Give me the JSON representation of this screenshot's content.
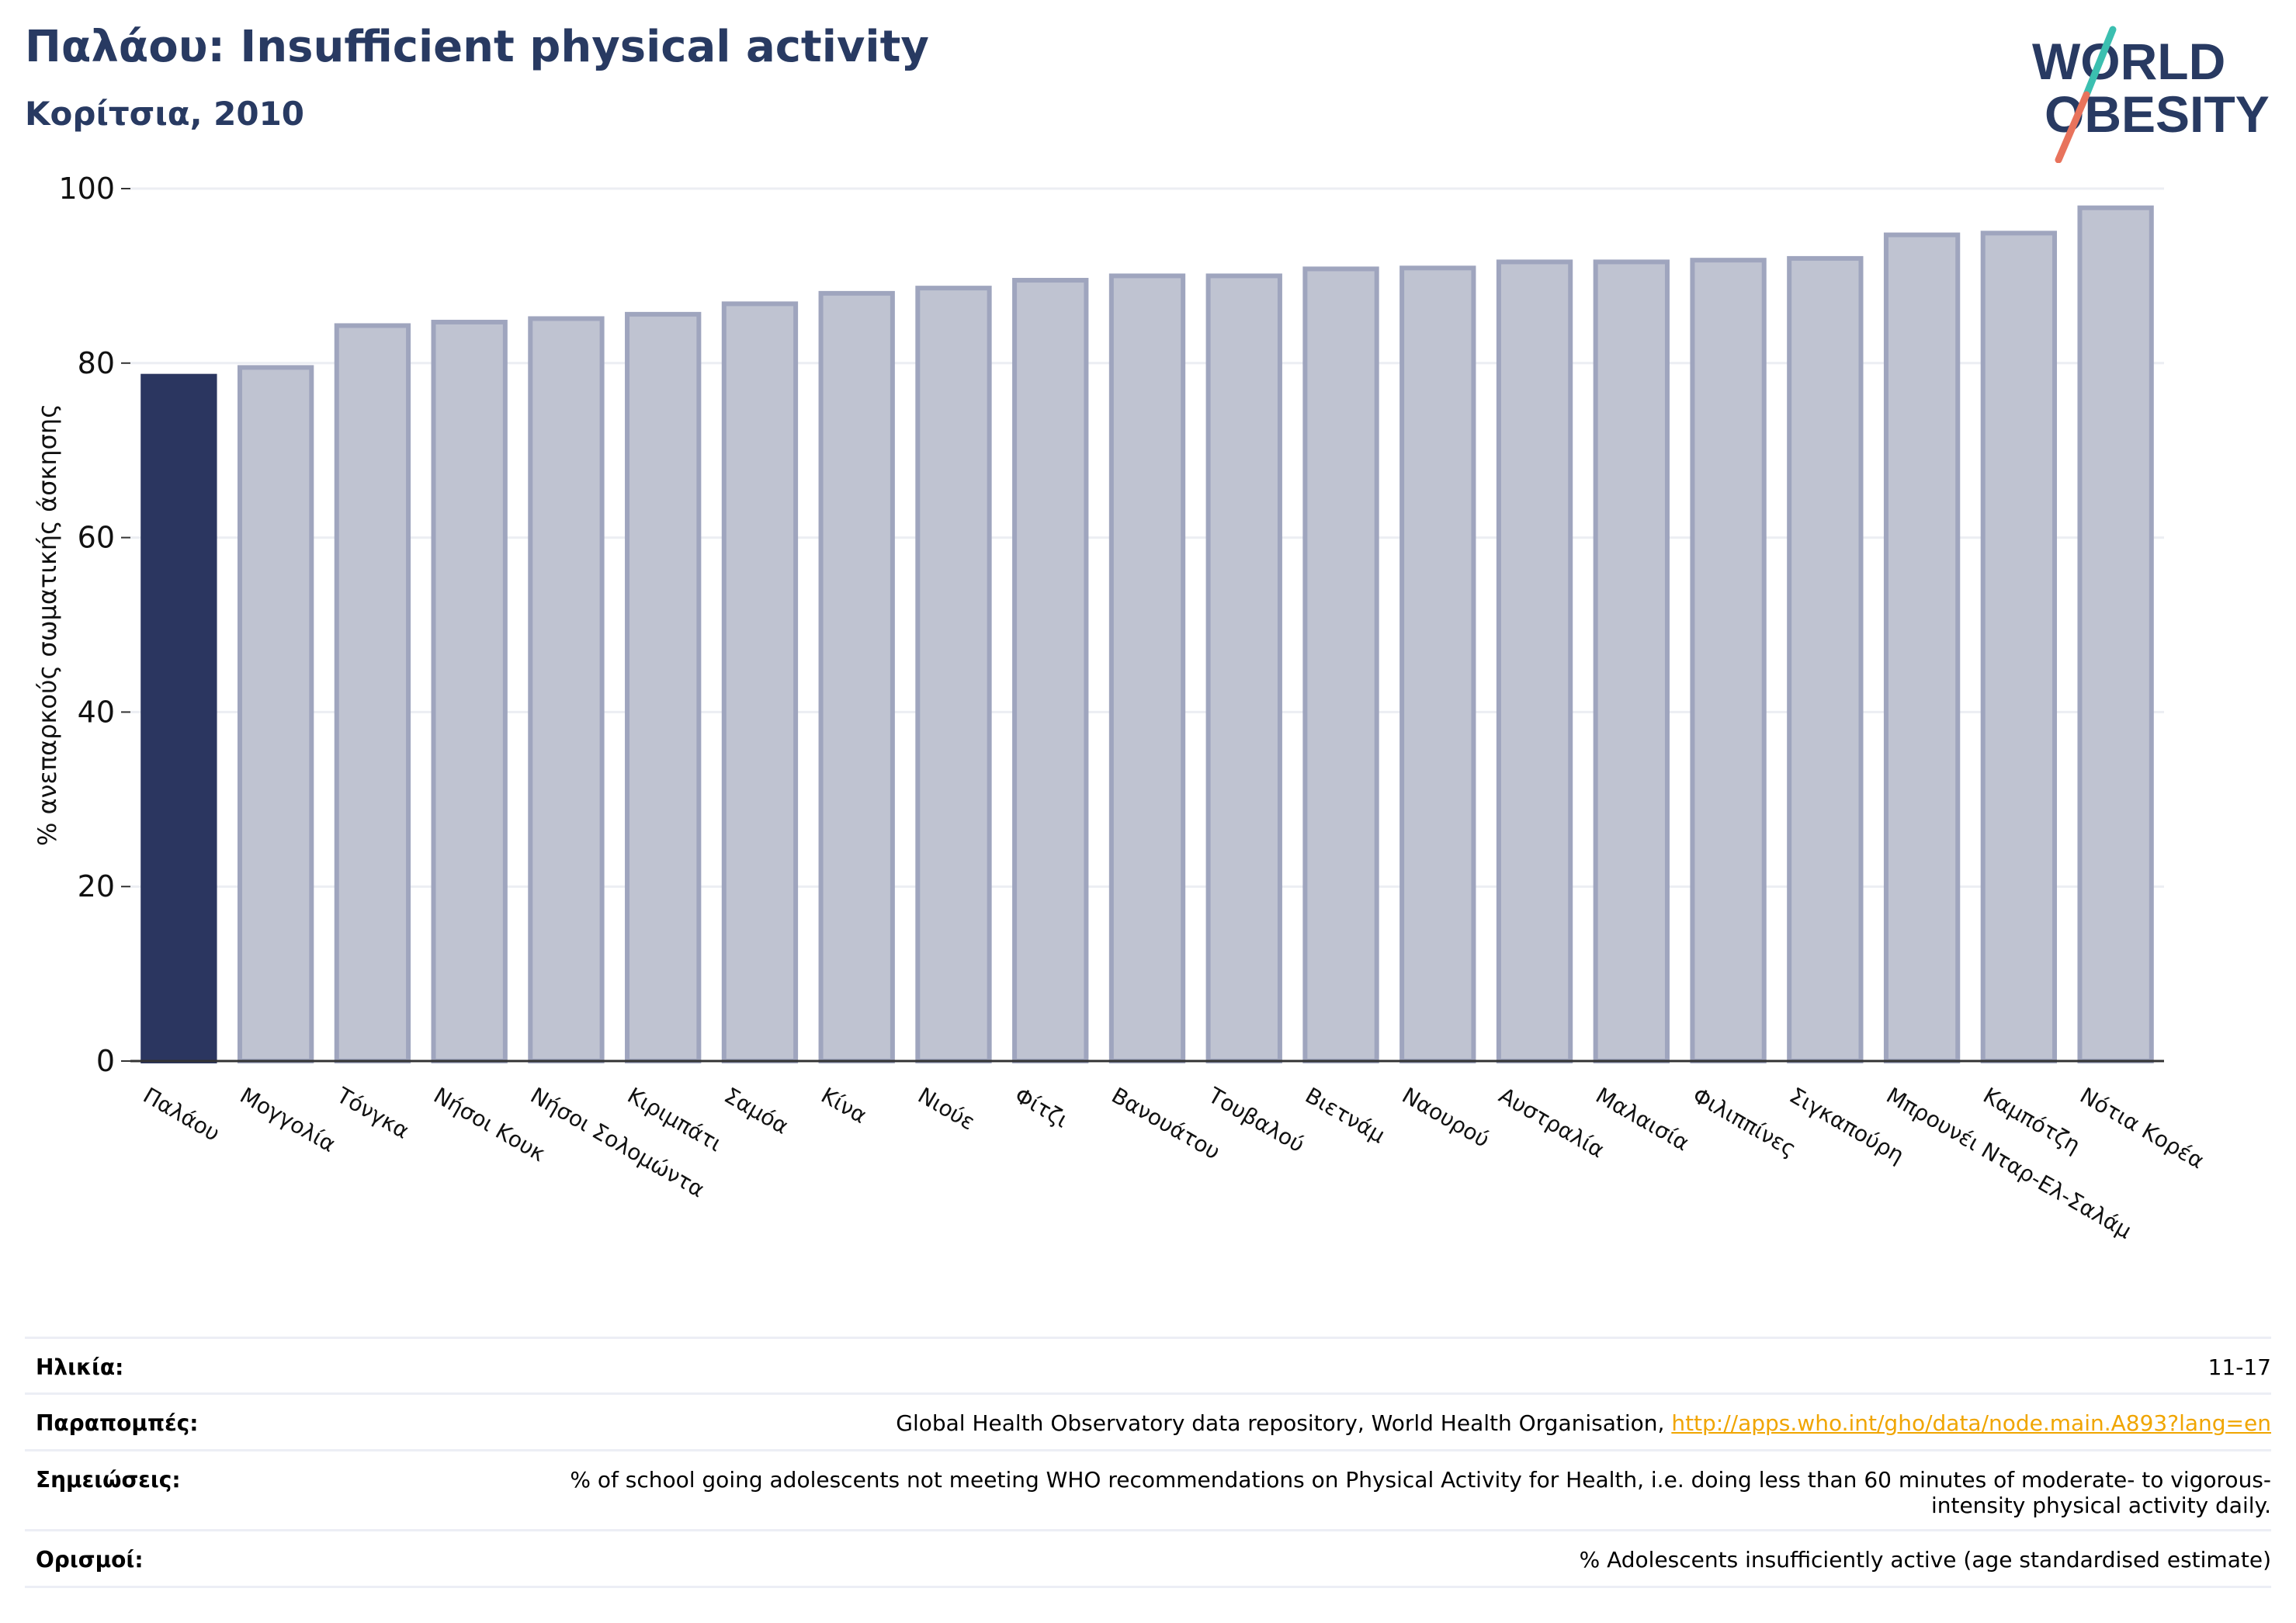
{
  "header": {
    "title": "Παλάου: Insufficient physical activity",
    "subtitle": "Κορίτσια, 2010"
  },
  "logo": {
    "line1": "WORLD",
    "line2": "OBESITY",
    "colors": {
      "text": "#283a62",
      "slash_top": "#3bbfb0",
      "slash_bottom": "#e8735c"
    }
  },
  "colors": {
    "highlight": "#2b3660",
    "bar_fill": "#bfc3d1",
    "bar_stroke": "#9fa5be",
    "grid": "#eceef3",
    "axis": "#333333"
  },
  "chart_data": {
    "type": "bar",
    "title": "",
    "xlabel": "",
    "ylabel": "% ανεπαρκούς σωματικής άσκησης",
    "ylim": [
      0,
      100
    ],
    "yticks": [
      0,
      20,
      40,
      60,
      80,
      100
    ],
    "grid": true,
    "highlight_index": 0,
    "categories": [
      "Παλάου",
      "Μογγολία",
      "Τόνγκα",
      "Νήσοι Κουκ",
      "Νήσοι Σολομώντα",
      "Κιριμπάτι",
      "Σαμόα",
      "Κίνα",
      "Νιούε",
      "Φίτζι",
      "Βανουάτου",
      "Τουβαλού",
      "Βιετνάμ",
      "Ναουρού",
      "Αυστραλία",
      "Μαλαισία",
      "Φιλιππίνες",
      "Σιγκαπούρη",
      "Μπρουνέι Νταρ-Ελ-Σαλάμ",
      "Καμπότζη",
      "Νότια Κορέα"
    ],
    "values": [
      78.5,
      79.5,
      84.3,
      84.7,
      85.1,
      85.6,
      86.8,
      88.0,
      88.6,
      89.5,
      90.0,
      90.0,
      90.8,
      90.9,
      91.6,
      91.6,
      91.8,
      92.0,
      94.7,
      94.9,
      97.8
    ]
  },
  "info": {
    "age_label": "Ηλικία:",
    "age_value": "11-17",
    "refs_label": "Παραπομπές:",
    "refs_text": "Global Health Observatory data repository, World Health Organisation, ",
    "refs_link": "http://apps.who.int/gho/data/node.main.A893?lang=en",
    "notes_label": "Σημειώσεις:",
    "notes_value": "% of school going adolescents not meeting WHO recommendations on Physical Activity for Health, i.e. doing less than 60 minutes of moderate- to vigorous-intensity physical activity daily.",
    "defs_label": "Ορισμοί:",
    "defs_value": "% Adolescents insufficiently active (age standardised estimate)"
  }
}
